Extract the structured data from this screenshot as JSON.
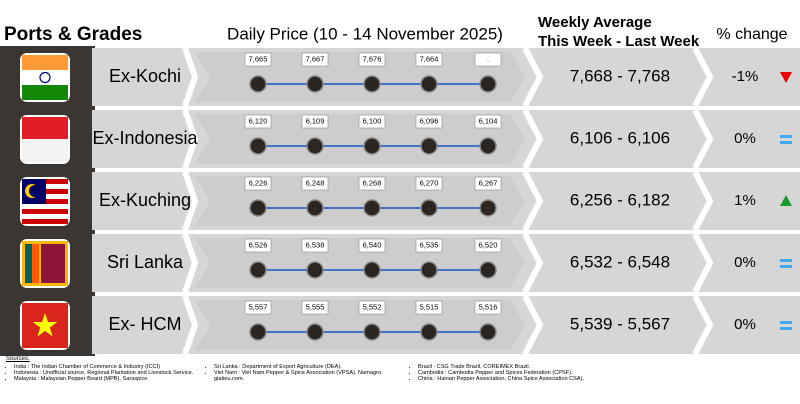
{
  "header": {
    "ports": "Ports & Grades",
    "daily": "Daily Price (10 - 14 November 2025)",
    "weekly_line1": "Weekly Average",
    "weekly_line2": "This Week - Last Week",
    "change": "% change"
  },
  "rows": [
    {
      "port": "Ex-Kochi",
      "prices": [
        "7,665",
        "7,667",
        "7,676",
        "7,664",
        "."
      ],
      "weekly": "7,668 - 7,768",
      "change": "-1%"
    },
    {
      "port": "Ex-Indonesia",
      "prices": [
        "6,120",
        "6,109",
        "6,100",
        "6,096",
        "6,104"
      ],
      "weekly": "6,106 - 6,106",
      "change": "0%"
    },
    {
      "port": "Ex-Kuching",
      "prices": [
        "6,226",
        "6,248",
        "6,268",
        "6,270",
        "6,267"
      ],
      "weekly": "6,256 - 6,182",
      "change": "1%"
    },
    {
      "port": "Sri Lanka",
      "prices": [
        "6,526",
        "6,538",
        "6,540",
        "6,535",
        "6,520"
      ],
      "weekly": "6,532 - 6,548",
      "change": "0%"
    },
    {
      "port": "Ex- HCM",
      "prices": [
        "5,557",
        "5,555",
        "5,552",
        "5,515",
        "5,516"
      ],
      "weekly": "5,539 - 5,567",
      "change": "0%"
    }
  ],
  "sources": {
    "heading": "Sources:",
    "columns": [
      [
        "India : The Indian Chamber of Commerce & Industry (ICCI)",
        "Indonesia : Unofficial source, Regional Plantation and Livestock Service.",
        "Malaysia : Malaysian Pepper Board (MPB), Saraspice."
      ],
      [
        "Sri Lanka : Department of Export Agriculture (DEA).",
        "Viet Nam : Viet Nam Pepper & Spice Association (VPSA). Namagro. giatieu.com."
      ],
      [
        "Brazil : CSG Trade Brazil, COREIMEX Brazil.",
        "Cambodia : Cambodia Pepper and Spices Federation (CPSF).",
        "China : Hainan Pepper Association, China Spice Association CSA)."
      ]
    ]
  }
}
